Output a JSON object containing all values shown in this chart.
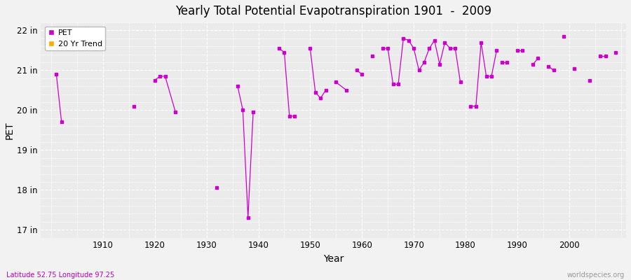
{
  "title": "Yearly Total Potential Evapotranspiration 1901  -  2009",
  "xlabel": "Year",
  "ylabel": "PET",
  "subtitle_left": "Latitude 52.75 Longitude 97.25",
  "subtitle_right": "worldspecies.org",
  "ylim": [
    16.8,
    22.2
  ],
  "yticks": [
    17,
    18,
    19,
    20,
    21,
    22
  ],
  "ytick_labels": [
    "17 in",
    "18 in",
    "19 in",
    "20 in",
    "21 in",
    "22 in"
  ],
  "xlim": [
    1898,
    2011
  ],
  "xticks": [
    1910,
    1920,
    1930,
    1940,
    1950,
    1960,
    1970,
    1980,
    1990,
    2000
  ],
  "pet_color": "#cc00cc",
  "trend_color": "#ffaa00",
  "background_color": "#f2f2f2",
  "plot_bg_color": "#ebebeb",
  "grid_color": "#ffffff",
  "pet_segments": [
    {
      "x": [
        1901,
        1902
      ],
      "y": [
        20.9,
        19.7
      ]
    },
    {
      "x": [
        1916
      ],
      "y": [
        20.1
      ]
    },
    {
      "x": [
        1920,
        1921,
        1922,
        1924
      ],
      "y": [
        20.75,
        20.85,
        20.85,
        19.95
      ]
    },
    {
      "x": [
        1932
      ],
      "y": [
        18.05
      ]
    },
    {
      "x": [
        1936,
        1937,
        1938,
        1939
      ],
      "y": [
        20.6,
        20.0,
        17.3,
        19.95
      ]
    },
    {
      "x": [
        1944,
        1945,
        1946,
        1947
      ],
      "y": [
        21.55,
        21.45,
        19.85,
        19.85
      ]
    },
    {
      "x": [
        1950,
        1951,
        1952,
        1953
      ],
      "y": [
        21.55,
        20.45,
        20.3,
        20.5
      ]
    },
    {
      "x": [
        1955,
        1957
      ],
      "y": [
        20.7,
        20.5
      ]
    },
    {
      "x": [
        1959,
        1960
      ],
      "y": [
        21.0,
        20.9
      ]
    },
    {
      "x": [
        1962
      ],
      "y": [
        21.35
      ]
    },
    {
      "x": [
        1964,
        1965,
        1966,
        1967,
        1968,
        1969,
        1970,
        1971,
        1972,
        1973,
        1974,
        1975,
        1976,
        1977,
        1978,
        1979
      ],
      "y": [
        21.55,
        21.55,
        20.65,
        20.65,
        21.8,
        21.75,
        21.55,
        21.0,
        21.2,
        21.55,
        21.75,
        21.15,
        21.7,
        21.55,
        21.55,
        20.7
      ]
    },
    {
      "x": [
        1981,
        1982,
        1983,
        1984,
        1985,
        1986
      ],
      "y": [
        20.1,
        20.1,
        21.7,
        20.85,
        20.85,
        21.5
      ]
    },
    {
      "x": [
        1987,
        1988
      ],
      "y": [
        21.2,
        21.2
      ]
    },
    {
      "x": [
        1990,
        1991
      ],
      "y": [
        21.5,
        21.5
      ]
    },
    {
      "x": [
        1993,
        1994
      ],
      "y": [
        21.15,
        21.3
      ]
    },
    {
      "x": [
        1996,
        1997
      ],
      "y": [
        21.1,
        21.0
      ]
    },
    {
      "x": [
        1999
      ],
      "y": [
        21.85
      ]
    },
    {
      "x": [
        2001
      ],
      "y": [
        21.05
      ]
    },
    {
      "x": [
        2004
      ],
      "y": [
        20.75
      ]
    },
    {
      "x": [
        2006,
        2007
      ],
      "y": [
        21.35,
        21.35
      ]
    },
    {
      "x": [
        2009
      ],
      "y": [
        21.45
      ]
    }
  ]
}
